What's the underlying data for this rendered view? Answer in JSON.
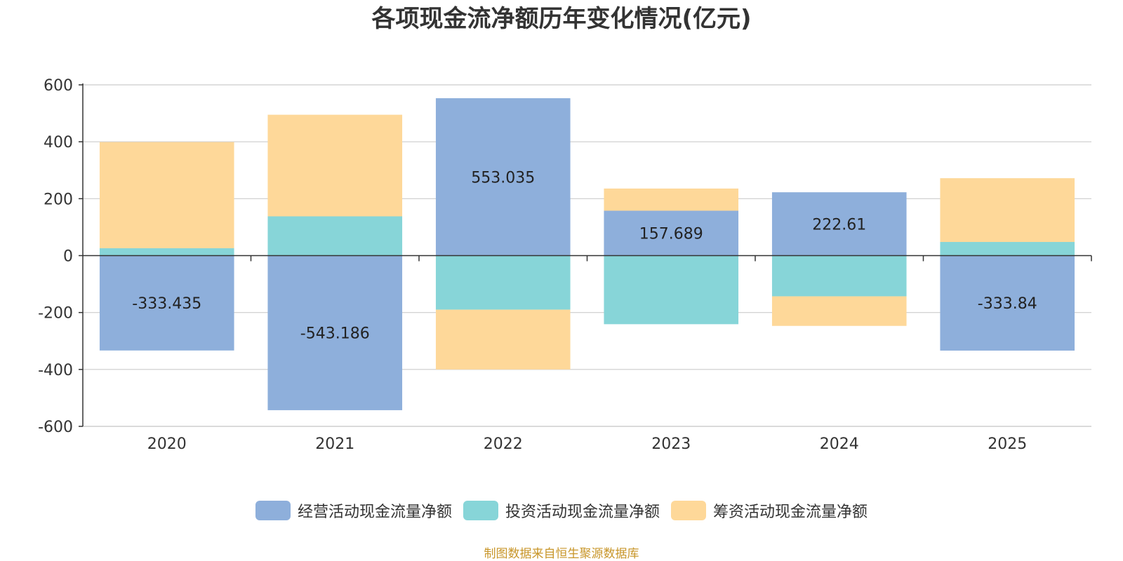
{
  "chart_data": {
    "type": "bar",
    "stacked": true,
    "title": "各项现金流净额历年变化情况(亿元)",
    "categories": [
      "2020",
      "2021",
      "2022",
      "2023",
      "2024",
      "2025"
    ],
    "ylim": [
      -600,
      600
    ],
    "yticks": [
      600,
      400,
      200,
      0,
      -200,
      -400,
      -600
    ],
    "grid": true,
    "legend_position": "bottom",
    "series": [
      {
        "name": "经营活动现金流量净额",
        "color": "#8eafdb",
        "values": [
          -333.435,
          -543.186,
          553.035,
          157.689,
          222.61,
          -333.84
        ],
        "labels": [
          "-333.435",
          "-543.186",
          "553.035",
          "157.689",
          "222.61",
          "-333.84"
        ]
      },
      {
        "name": "投资活动现金流量净额",
        "color": "#87d5d8",
        "values": [
          26,
          138,
          -190,
          -241,
          -143,
          48
        ]
      },
      {
        "name": "筹资活动现金流量净额",
        "color": "#fed899",
        "values": [
          373,
          357,
          -210,
          78,
          -104,
          224
        ]
      }
    ]
  },
  "source_note": "制图数据来自恒生聚源数据库"
}
